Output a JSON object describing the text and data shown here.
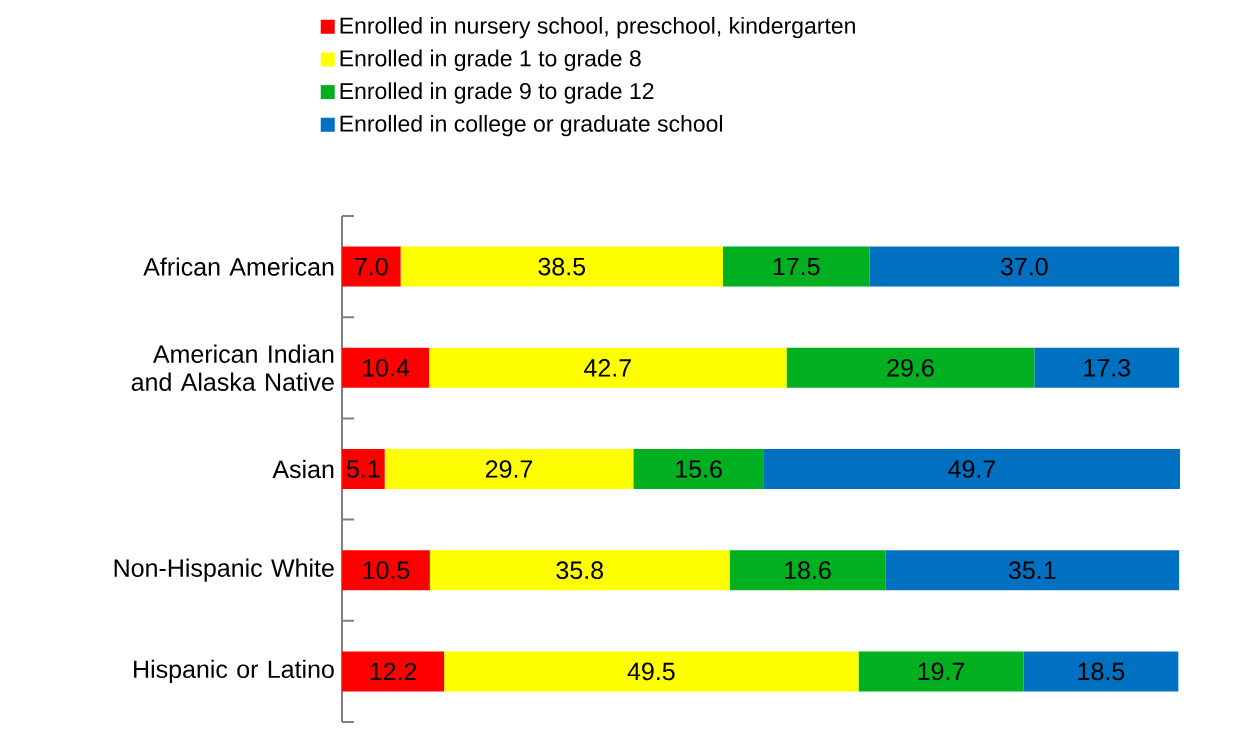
{
  "chart_data": {
    "type": "bar",
    "orientation": "horizontal",
    "stacked": true,
    "legend": "top",
    "categories": [
      "African American",
      "American Indian and Alaska Native",
      "Asian",
      "Non-Hispanic White",
      "Hispanic or Latino"
    ],
    "series": [
      {
        "name": "Enrolled in nursery school, preschool, kindergarten",
        "color": "#ff0000",
        "values": [
          7.0,
          10.4,
          5.1,
          10.5,
          12.2
        ],
        "value_labels": [
          "7.0",
          "10.4",
          "5.1",
          "10.5",
          "12.2"
        ]
      },
      {
        "name": "Enrolled in grade 1 to grade 8",
        "color": "#ffff00",
        "values": [
          38.5,
          42.7,
          29.7,
          35.8,
          49.5
        ],
        "value_labels": [
          "38.5",
          "42.7",
          "29.7",
          "35.8",
          "49.5"
        ]
      },
      {
        "name": "Enrolled in grade 9 to grade 12",
        "color": "#00b020",
        "values": [
          17.5,
          29.6,
          15.6,
          18.6,
          19.7
        ],
        "value_labels": [
          "17.5",
          "29.6",
          "15.6",
          "18.6",
          "19.7"
        ]
      },
      {
        "name": "Enrolled in college or graduate school",
        "color": "#0070c0",
        "values": [
          37.0,
          17.3,
          49.7,
          35.1,
          18.5
        ],
        "value_labels": [
          "37.0",
          "17.3",
          "49.7",
          "35.1",
          "18.5"
        ]
      }
    ]
  }
}
